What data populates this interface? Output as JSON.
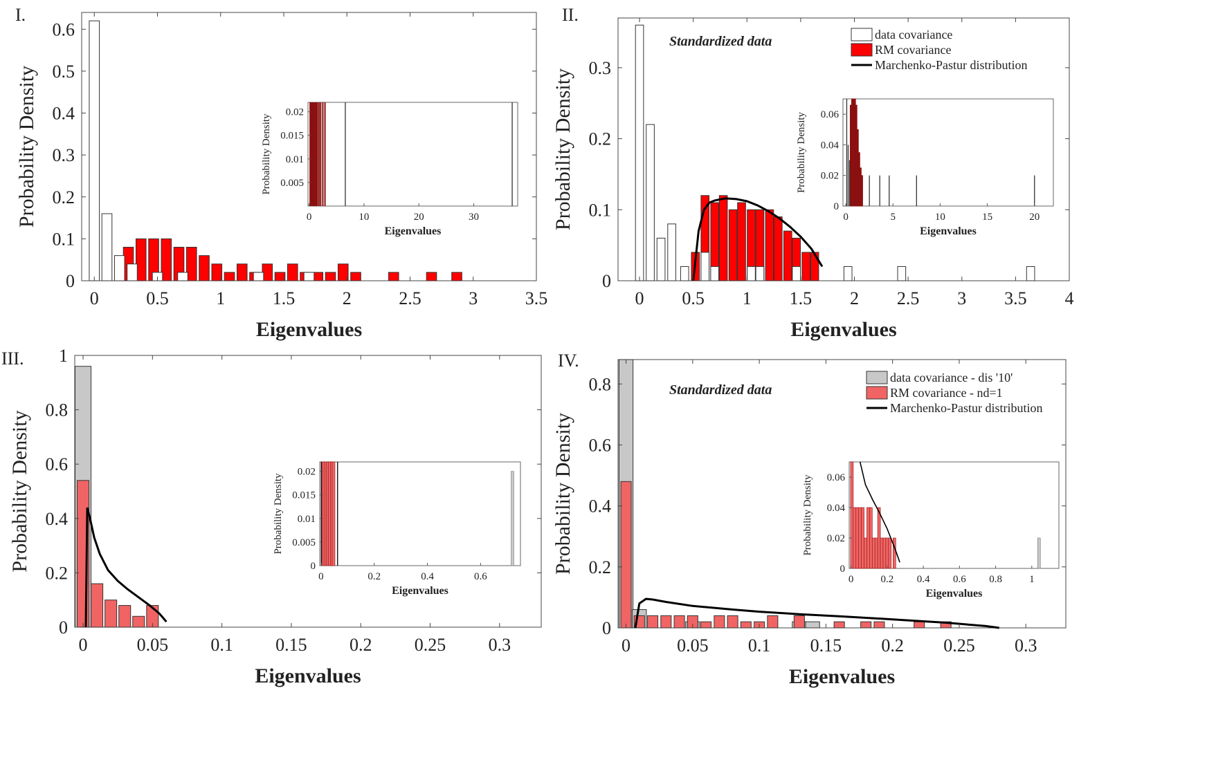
{
  "colors": {
    "red": "#ff0000",
    "red_light": "#f06464",
    "red_dark": "#8b1010",
    "gray_bar": "#c8c8c8",
    "white_bar": "#ffffff",
    "edge": "#333333",
    "curve": "#000000"
  },
  "chart_data": [
    {
      "panel_label": "I.",
      "type": "bar",
      "title": "",
      "xlabel": "Eigenvalues",
      "ylabel": "Probability Density",
      "xlim": [
        -0.1,
        3.5
      ],
      "ylim": [
        0,
        0.64
      ],
      "xticks": [
        0,
        0.5,
        1,
        1.5,
        2,
        2.5,
        3,
        3.5
      ],
      "yticks": [
        0,
        0.1,
        0.2,
        0.3,
        0.4,
        0.5,
        0.6
      ],
      "series": [
        {
          "name": "RM covariance",
          "color": "red",
          "bar_width": 0.08,
          "x": [
            0.27,
            0.37,
            0.47,
            0.57,
            0.67,
            0.77,
            0.87,
            0.97,
            1.07,
            1.17,
            1.27,
            1.37,
            1.47,
            1.57,
            1.67,
            1.77,
            1.87,
            1.97,
            2.07,
            2.37,
            2.67,
            2.87
          ],
          "values": [
            0.08,
            0.1,
            0.1,
            0.1,
            0.08,
            0.08,
            0.06,
            0.04,
            0.02,
            0.04,
            0.02,
            0.04,
            0.02,
            0.04,
            0.02,
            0.02,
            0.02,
            0.04,
            0.02,
            0.02,
            0.02,
            0.02
          ]
        },
        {
          "name": "data covariance",
          "color": "white_bar",
          "bar_width": 0.08,
          "x": [
            0,
            0.1,
            0.2,
            0.3,
            0.5,
            0.7,
            1.3,
            1.7
          ],
          "values": [
            0.62,
            0.16,
            0.06,
            0.04,
            0.02,
            0.02,
            0.02,
            0.02
          ]
        }
      ],
      "inset": {
        "xlabel": "Eigenvalues",
        "ylabel": "Probability Density",
        "xlim": [
          -0.2,
          38
        ],
        "ylim": [
          0,
          0.022
        ],
        "xticks": [
          0,
          10,
          20,
          30
        ],
        "yticks": [
          0.005,
          0.01,
          0.015,
          0.02
        ],
        "ytick_labels": [
          "0.005",
          "0.01",
          "0.015",
          "0.02"
        ],
        "lines": [
          {
            "x": 0.2,
            "color": "red_dark"
          },
          {
            "x": 0.35,
            "color": "red_dark"
          },
          {
            "x": 0.5,
            "color": "red_dark"
          },
          {
            "x": 0.65,
            "color": "red_dark"
          },
          {
            "x": 0.8,
            "color": "red_dark"
          },
          {
            "x": 0.95,
            "color": "red_dark"
          },
          {
            "x": 1.1,
            "color": "red_dark"
          },
          {
            "x": 1.3,
            "color": "red_dark"
          },
          {
            "x": 1.5,
            "color": "red_dark"
          },
          {
            "x": 1.8,
            "color": "red_dark"
          },
          {
            "x": 2.1,
            "color": "red_dark"
          },
          {
            "x": 2.5,
            "color": "red_dark"
          },
          {
            "x": 2.9,
            "color": "red_dark"
          },
          {
            "x": 6.6,
            "color": "edge"
          },
          {
            "x": 37,
            "color": "edge"
          }
        ]
      }
    },
    {
      "panel_label": "II.",
      "type": "bar",
      "annotation": "Standardized data",
      "xlabel": "Eigenvalues",
      "ylabel": "Probability Density",
      "xlim": [
        -0.2,
        4
      ],
      "ylim": [
        0,
        0.37
      ],
      "xticks": [
        0,
        0.5,
        1,
        1.5,
        2,
        2.5,
        3,
        3.5,
        4
      ],
      "yticks": [
        0,
        0.1,
        0.2,
        0.3
      ],
      "legend": [
        "data covariance",
        "RM covariance",
        "Marchenko-Pastur distribution"
      ],
      "series": [
        {
          "name": "RM covariance",
          "color": "red",
          "bar_width": 0.075,
          "x": [
            0.52,
            0.61,
            0.7,
            0.78,
            0.87,
            0.95,
            1.04,
            1.12,
            1.21,
            1.29,
            1.38,
            1.46,
            1.55,
            1.63
          ],
          "values": [
            0.04,
            0.12,
            0.11,
            0.12,
            0.1,
            0.11,
            0.1,
            0.1,
            0.1,
            0.09,
            0.07,
            0.06,
            0.04,
            0.04
          ]
        },
        {
          "name": "data covariance",
          "color": "white_bar",
          "bar_width": 0.075,
          "x": [
            0,
            0.1,
            0.2,
            0.3,
            0.42,
            0.61,
            0.7,
            1.04,
            1.12,
            1.46,
            1.94,
            2.44,
            3.64
          ],
          "values": [
            0.36,
            0.22,
            0.06,
            0.08,
            0.02,
            0.04,
            0.02,
            0.02,
            0.02,
            0.02,
            0.02,
            0.02,
            0.02
          ]
        }
      ],
      "curve": {
        "name": "Marchenko-Pastur distribution",
        "x": [
          0.5,
          0.55,
          0.6,
          0.65,
          0.7,
          0.8,
          0.9,
          1.0,
          1.1,
          1.2,
          1.3,
          1.4,
          1.5,
          1.6,
          1.7
        ],
        "y": [
          0.0,
          0.07,
          0.1,
          0.11,
          0.113,
          0.116,
          0.115,
          0.112,
          0.106,
          0.098,
          0.088,
          0.076,
          0.062,
          0.045,
          0.02
        ]
      },
      "inset": {
        "xlabel": "Eigenvalues",
        "ylabel": "Probability Density",
        "xlim": [
          -0.3,
          22
        ],
        "ylim": [
          0,
          0.07
        ],
        "xticks": [
          0,
          5,
          10,
          15,
          20
        ],
        "yticks": [
          0,
          0.02,
          0.04,
          0.06
        ],
        "ytick_labels": [
          "0",
          "0.02",
          "0.04",
          "0.06"
        ],
        "red_bars": [
          {
            "x": 0.6,
            "h": 0.066
          },
          {
            "x": 0.75,
            "h": 0.07
          },
          {
            "x": 0.9,
            "h": 0.07
          },
          {
            "x": 1.05,
            "h": 0.066
          },
          {
            "x": 1.2,
            "h": 0.05
          },
          {
            "x": 1.35,
            "h": 0.035
          },
          {
            "x": 1.5,
            "h": 0.025
          },
          {
            "x": 1.65,
            "h": 0.02
          }
        ],
        "lines": [
          {
            "x": 0.1,
            "h": 0.07
          },
          {
            "x": 0.25,
            "h": 0.04
          },
          {
            "x": 0.4,
            "h": 0.03
          },
          {
            "x": 2.5,
            "h": 0.02
          },
          {
            "x": 3.6,
            "h": 0.02
          },
          {
            "x": 4.6,
            "h": 0.02
          },
          {
            "x": 7.5,
            "h": 0.02
          },
          {
            "x": 20,
            "h": 0.02
          }
        ]
      }
    },
    {
      "panel_label": "III.",
      "type": "bar",
      "xlabel": "Eigenvalues",
      "ylabel": "Probability Density",
      "xlim": [
        -0.006,
        0.33
      ],
      "ylim": [
        0,
        1.0
      ],
      "xticks": [
        0,
        0.05,
        0.1,
        0.15,
        0.2,
        0.25,
        0.3
      ],
      "yticks": [
        0,
        0.2,
        0.4,
        0.6,
        0.8,
        1
      ],
      "series": [
        {
          "name": "data covariance",
          "color": "gray_bar",
          "bar_width": 0.0115,
          "x": [
            0.0
          ],
          "values": [
            0.96
          ]
        },
        {
          "name": "RM covariance",
          "color": "red_light",
          "bar_width": 0.0085,
          "x": [
            0.0,
            0.01,
            0.02,
            0.03,
            0.04,
            0.05
          ],
          "values": [
            0.54,
            0.16,
            0.1,
            0.08,
            0.04,
            0.08
          ]
        }
      ],
      "curve": {
        "name": "Marchenko-Pastur distribution",
        "x": [
          0.002,
          0.003,
          0.005,
          0.008,
          0.012,
          0.018,
          0.025,
          0.032,
          0.04,
          0.048,
          0.055,
          0.06
        ],
        "y": [
          0.0,
          0.44,
          0.4,
          0.33,
          0.27,
          0.21,
          0.17,
          0.14,
          0.11,
          0.08,
          0.05,
          0.02
        ]
      },
      "inset": {
        "xlabel": "Eigenvalues",
        "ylabel": "Probability Density",
        "xlim": [
          -0.005,
          0.75
        ],
        "ylim": [
          0,
          0.022
        ],
        "xticks": [
          0,
          0.2,
          0.4,
          0.6
        ],
        "yticks": [
          0,
          0.005,
          0.01,
          0.015,
          0.02
        ],
        "ytick_labels": [
          "0",
          "0.005",
          "0.01",
          "0.015",
          "0.02"
        ],
        "red_bars": [
          {
            "x": 0.005,
            "h": 0.022
          },
          {
            "x": 0.012,
            "h": 0.022
          },
          {
            "x": 0.019,
            "h": 0.022
          },
          {
            "x": 0.026,
            "h": 0.022
          },
          {
            "x": 0.033,
            "h": 0.022
          },
          {
            "x": 0.04,
            "h": 0.022
          },
          {
            "x": 0.047,
            "h": 0.022
          }
        ],
        "lines": [
          {
            "x": 0.001,
            "h": 0.022,
            "color": "curve"
          },
          {
            "x": 0.062,
            "h": 0.022,
            "color": "curve"
          }
        ],
        "gray_bars": [
          {
            "x": 0.72,
            "h": 0.02
          }
        ]
      }
    },
    {
      "panel_label": "IV.",
      "type": "bar",
      "annotation": "Standardized data",
      "xlabel": "Eigenvalues",
      "ylabel": "Probability Density",
      "xlim": [
        -0.006,
        0.33
      ],
      "ylim": [
        0,
        0.88
      ],
      "xticks": [
        0,
        0.05,
        0.1,
        0.15,
        0.2,
        0.25,
        0.3
      ],
      "yticks": [
        0,
        0.2,
        0.4,
        0.6,
        0.8
      ],
      "legend": [
        "data covariance - dis '10'",
        "RM covariance - nd=1",
        "Marchenko-Pastur distribution"
      ],
      "series": [
        {
          "name": "data covariance - dis '10'",
          "color": "gray_bar",
          "bar_width": 0.0105,
          "x": [
            0.0,
            0.01,
            0.05,
            0.13,
            0.14
          ],
          "values": [
            0.88,
            0.06,
            0.02,
            0.02,
            0.02
          ]
        },
        {
          "name": "RM covariance - nd=1",
          "color": "red_light",
          "bar_width": 0.0078,
          "x": [
            0.0,
            0.01,
            0.02,
            0.03,
            0.04,
            0.05,
            0.06,
            0.07,
            0.08,
            0.09,
            0.1,
            0.11,
            0.13,
            0.16,
            0.18,
            0.19,
            0.22,
            0.24
          ],
          "values": [
            0.48,
            0.04,
            0.04,
            0.04,
            0.04,
            0.04,
            0.02,
            0.04,
            0.04,
            0.02,
            0.02,
            0.04,
            0.04,
            0.02,
            0.02,
            0.02,
            0.02,
            0.02
          ]
        }
      ],
      "curve": {
        "name": "Marchenko-Pastur distribution",
        "x": [
          0.007,
          0.01,
          0.015,
          0.02,
          0.03,
          0.05,
          0.08,
          0.1,
          0.13,
          0.16,
          0.2,
          0.24,
          0.27,
          0.28
        ],
        "y": [
          0.0,
          0.08,
          0.095,
          0.093,
          0.085,
          0.072,
          0.06,
          0.053,
          0.045,
          0.038,
          0.028,
          0.017,
          0.006,
          0.0
        ]
      },
      "inset": {
        "xlabel": "Eigenvalues",
        "ylabel": "Probability Density",
        "xlim": [
          -0.01,
          1.15
        ],
        "ylim": [
          0,
          0.07
        ],
        "xticks": [
          0,
          0.2,
          0.4,
          0.6,
          0.8,
          1
        ],
        "yticks": [
          0,
          0.02,
          0.04,
          0.06
        ],
        "ytick_labels": [
          "0",
          "0.02",
          "0.04",
          "0.06"
        ],
        "red_bars": [
          {
            "x": 0.005,
            "h": 0.07
          },
          {
            "x": 0.02,
            "h": 0.04
          },
          {
            "x": 0.035,
            "h": 0.04
          },
          {
            "x": 0.05,
            "h": 0.04
          },
          {
            "x": 0.065,
            "h": 0.04
          },
          {
            "x": 0.08,
            "h": 0.02
          },
          {
            "x": 0.095,
            "h": 0.04
          },
          {
            "x": 0.11,
            "h": 0.04
          },
          {
            "x": 0.125,
            "h": 0.02
          },
          {
            "x": 0.14,
            "h": 0.02
          },
          {
            "x": 0.155,
            "h": 0.04
          },
          {
            "x": 0.17,
            "h": 0.02
          },
          {
            "x": 0.185,
            "h": 0.02
          },
          {
            "x": 0.2,
            "h": 0.02
          },
          {
            "x": 0.215,
            "h": 0.02
          },
          {
            "x": 0.24,
            "h": 0.02
          }
        ],
        "gray_bars": [
          {
            "x": 1.04,
            "h": 0.02
          }
        ],
        "curve": {
          "x": [
            0.05,
            0.08,
            0.12,
            0.16,
            0.2,
            0.24,
            0.27
          ],
          "y": [
            0.07,
            0.055,
            0.045,
            0.036,
            0.026,
            0.014,
            0.004
          ]
        }
      }
    }
  ]
}
